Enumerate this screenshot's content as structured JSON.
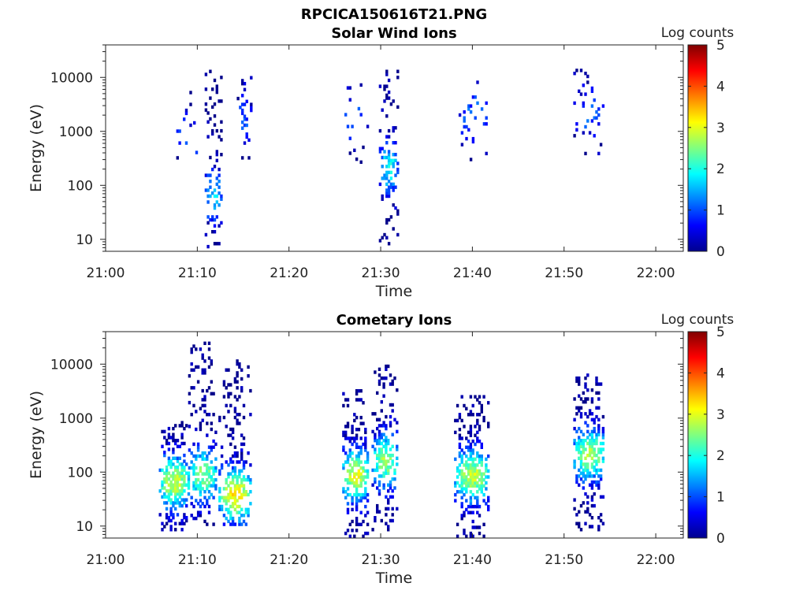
{
  "figure_title": "RPCICA150616T21.PNG",
  "chart_data": [
    {
      "type": "heatmap",
      "title": "Solar Wind Ions",
      "xlabel": "Time",
      "ylabel": "Energy (eV)",
      "yscale": "log",
      "ylim": [
        6,
        40000
      ],
      "xlim_minutes": [
        0,
        63
      ],
      "xticks": [
        {
          "value": 0,
          "label": "21:00"
        },
        {
          "value": 10,
          "label": "21:10"
        },
        {
          "value": 20,
          "label": "21:20"
        },
        {
          "value": 30,
          "label": "21:30"
        },
        {
          "value": 40,
          "label": "21:40"
        },
        {
          "value": 50,
          "label": "21:50"
        },
        {
          "value": 60,
          "label": "22:00"
        }
      ],
      "yticks": [
        {
          "value": 10,
          "label": "10"
        },
        {
          "value": 100,
          "label": "100"
        },
        {
          "value": 1000,
          "label": "1000"
        },
        {
          "value": 10000,
          "label": "10000"
        }
      ],
      "colorbar": {
        "label": "Log counts",
        "min": 0,
        "max": 5,
        "ticks": [
          "0",
          "1",
          "2",
          "3",
          "4",
          "5"
        ]
      },
      "bursts": [
        {
          "t0": 7.7,
          "t1": 9.3,
          "emin": 300,
          "emax": 6000,
          "density": 0.14,
          "peak_log": 1.0,
          "peak_e": 800
        },
        {
          "t0": 9.3,
          "t1": 10.0,
          "emin": 200,
          "emax": 25000,
          "density": 0.08,
          "peak_log": 1.2,
          "peak_e": 400
        },
        {
          "t0": 10.8,
          "t1": 12.5,
          "emin": 6,
          "emax": 12000,
          "density": 0.55,
          "peak_log": 1.7,
          "peak_e": 60
        },
        {
          "t0": 14.3,
          "t1": 15.8,
          "emin": 300,
          "emax": 11000,
          "density": 0.2,
          "peak_log": 1.0,
          "peak_e": 1500
        },
        {
          "t0": 25.8,
          "t1": 28.5,
          "emin": 250,
          "emax": 12000,
          "density": 0.1,
          "peak_log": 1.0,
          "peak_e": 1500
        },
        {
          "t0": 29.8,
          "t1": 31.8,
          "emin": 6,
          "emax": 13000,
          "density": 0.5,
          "peak_log": 1.9,
          "peak_e": 200
        },
        {
          "t0": 38.5,
          "t1": 41.5,
          "emin": 280,
          "emax": 9000,
          "density": 0.14,
          "peak_log": 1.1,
          "peak_e": 2000
        },
        {
          "t0": 51.0,
          "t1": 54.3,
          "emin": 280,
          "emax": 14000,
          "density": 0.12,
          "peak_log": 1.1,
          "peak_e": 2000
        }
      ]
    },
    {
      "type": "heatmap",
      "title": "Cometary Ions",
      "xlabel": "Time",
      "ylabel": "Energy (eV)",
      "yscale": "log",
      "ylim": [
        6,
        40000
      ],
      "xlim_minutes": [
        0,
        63
      ],
      "xticks": [
        {
          "value": 0,
          "label": "21:00"
        },
        {
          "value": 10,
          "label": "21:10"
        },
        {
          "value": 20,
          "label": "21:20"
        },
        {
          "value": 30,
          "label": "21:30"
        },
        {
          "value": 40,
          "label": "21:40"
        },
        {
          "value": 50,
          "label": "21:50"
        },
        {
          "value": 60,
          "label": "22:00"
        }
      ],
      "yticks": [
        {
          "value": 10,
          "label": "10"
        },
        {
          "value": 100,
          "label": "100"
        },
        {
          "value": 1000,
          "label": "1000"
        },
        {
          "value": 10000,
          "label": "10000"
        }
      ],
      "colorbar": {
        "label": "Log counts",
        "min": 0,
        "max": 5,
        "ticks": [
          "0",
          "1",
          "2",
          "3",
          "4",
          "5"
        ]
      },
      "bursts": [
        {
          "t0": 5.8,
          "t1": 9.0,
          "emin": 8,
          "emax": 800,
          "density": 0.75,
          "peak_log": 2.9,
          "peak_e": 60
        },
        {
          "t0": 9.0,
          "t1": 12.0,
          "emin": 10,
          "emax": 25000,
          "density": 0.6,
          "peak_log": 2.5,
          "peak_e": 80
        },
        {
          "t0": 12.3,
          "t1": 15.8,
          "emin": 10,
          "emax": 12000,
          "density": 0.7,
          "peak_log": 3.2,
          "peak_e": 35
        },
        {
          "t0": 25.8,
          "t1": 28.6,
          "emin": 6,
          "emax": 3500,
          "density": 0.75,
          "peak_log": 3.0,
          "peak_e": 80
        },
        {
          "t0": 29.0,
          "t1": 31.8,
          "emin": 8,
          "emax": 9000,
          "density": 0.6,
          "peak_log": 2.6,
          "peak_e": 150
        },
        {
          "t0": 38.0,
          "t1": 41.8,
          "emin": 6,
          "emax": 2500,
          "density": 0.75,
          "peak_log": 2.8,
          "peak_e": 80
        },
        {
          "t0": 51.0,
          "t1": 54.3,
          "emin": 8,
          "emax": 6000,
          "density": 0.75,
          "peak_log": 2.7,
          "peak_e": 200
        }
      ]
    }
  ]
}
